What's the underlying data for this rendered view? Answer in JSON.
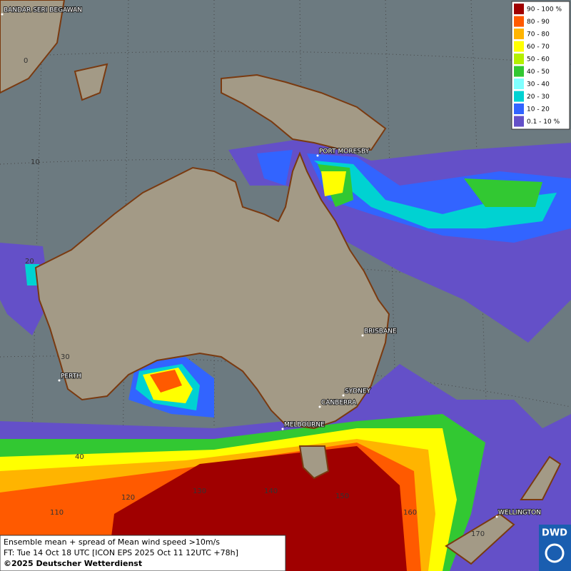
{
  "legend": {
    "items": [
      {
        "label": "90 - 100 %",
        "color": "#a00000"
      },
      {
        "label": "80 - 90",
        "color": "#ff5a00"
      },
      {
        "label": "70 - 80",
        "color": "#ffb400"
      },
      {
        "label": "60 - 70",
        "color": "#ffff00"
      },
      {
        "label": "50 - 60",
        "color": "#b4f000"
      },
      {
        "label": "40 - 50",
        "color": "#32c832"
      },
      {
        "label": "30 - 40",
        "color": "#80ffff"
      },
      {
        "label": "20 - 30",
        "color": "#00d2d2"
      },
      {
        "label": "10 - 20",
        "color": "#3264ff"
      },
      {
        "label": "0.1 - 10 %",
        "color": "#6450c8"
      }
    ]
  },
  "places": [
    "BANDAR SERI BEGAWAN",
    "PORT MORESBY",
    "BRISBANE",
    "SYDNEY",
    "CANBERRA",
    "MELBOURNE",
    "PERTH",
    "WELLINGTON"
  ],
  "grid_labels": [
    "0",
    "10",
    "20",
    "30",
    "40",
    "110",
    "120",
    "130",
    "140",
    "150",
    "160",
    "170"
  ],
  "info": {
    "lines": [
      "Ensemble mean + spread of Mean wind speed >10m/s",
      "FT: Tue 14 Oct 18 UTC [ICON EPS 2025 Oct 11 12UTC +78h]",
      "©2025 Deutscher Wetterdienst"
    ]
  },
  "logo": "DWD"
}
